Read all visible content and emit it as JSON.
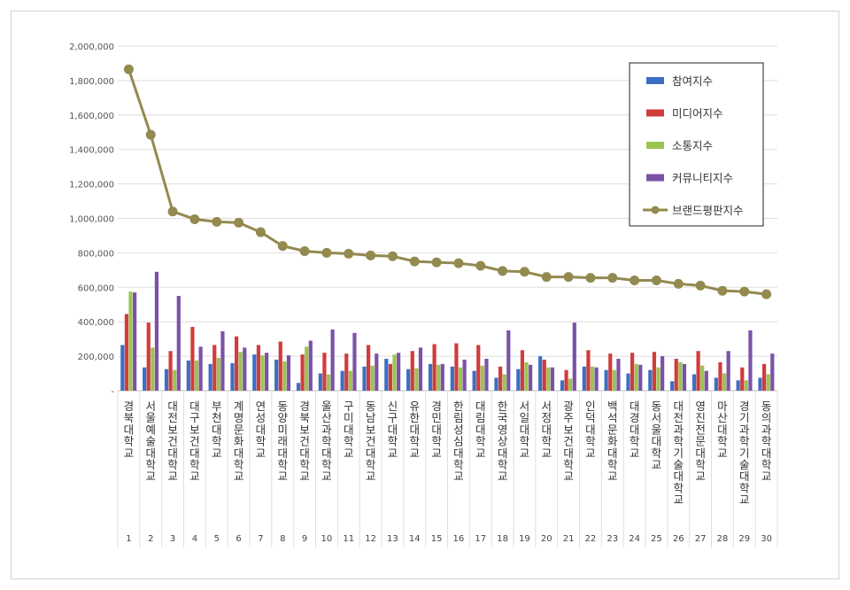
{
  "chart_data": {
    "type": "bar",
    "combo_line_series": "브랜드평판지수",
    "categories": [
      "경북대학교",
      "서울예술대학교",
      "대전보건대학교",
      "대구보건대학교",
      "부천대학교",
      "계명문화대학교",
      "연성대학교",
      "동양미래대학교",
      "경북보건대학교",
      "울산과학대학교",
      "구미대학교",
      "동남보건대학교",
      "신구대학교",
      "유한대학교",
      "경민대학교",
      "한림성심대학교",
      "대림대학교",
      "한국영상대학교",
      "서일대학교",
      "서정대학교",
      "광주보건대학교",
      "인덕대학교",
      "백석문화대학교",
      "대경대학교",
      "동서울대학교",
      "대전과학기술대학교",
      "영진전문대학교",
      "마산대학교",
      "경기과학기술대학교",
      "동의과학대학교"
    ],
    "ranks": [
      "1",
      "2",
      "3",
      "4",
      "5",
      "6",
      "7",
      "8",
      "9",
      "10",
      "11",
      "12",
      "13",
      "14",
      "15",
      "16",
      "17",
      "18",
      "19",
      "20",
      "21",
      "22",
      "23",
      "24",
      "25",
      "26",
      "27",
      "28",
      "29",
      "30"
    ],
    "ylim": [
      0,
      2000000
    ],
    "yticks": [
      0,
      200000,
      400000,
      600000,
      800000,
      1000000,
      1200000,
      1400000,
      1600000,
      1800000,
      2000000
    ],
    "ytick_labels": [
      "-",
      "200,000",
      "400,000",
      "600,000",
      "800,000",
      "1,000,000",
      "1,200,000",
      "1,400,000",
      "1,600,000",
      "1,800,000",
      "2,000,000"
    ],
    "grid": true,
    "legend_position": "top-right",
    "series": [
      {
        "name": "참여지수",
        "kind": "bar",
        "color": "#3b6fc4",
        "values": [
          265000,
          135000,
          125000,
          175000,
          155000,
          160000,
          210000,
          180000,
          45000,
          100000,
          115000,
          140000,
          185000,
          125000,
          155000,
          140000,
          115000,
          75000,
          125000,
          200000,
          60000,
          140000,
          120000,
          100000,
          120000,
          55000,
          95000,
          75000,
          60000,
          75000
        ]
      },
      {
        "name": "미디어지수",
        "kind": "bar",
        "color": "#d13c3c",
        "values": [
          445000,
          395000,
          230000,
          370000,
          265000,
          315000,
          265000,
          285000,
          210000,
          220000,
          215000,
          265000,
          155000,
          230000,
          270000,
          275000,
          265000,
          140000,
          235000,
          180000,
          120000,
          235000,
          215000,
          220000,
          225000,
          185000,
          230000,
          165000,
          135000,
          155000
        ]
      },
      {
        "name": "소통지수",
        "kind": "bar",
        "color": "#9bc450",
        "values": [
          575000,
          250000,
          120000,
          175000,
          190000,
          225000,
          205000,
          170000,
          255000,
          95000,
          115000,
          145000,
          210000,
          130000,
          150000,
          135000,
          145000,
          95000,
          165000,
          135000,
          70000,
          140000,
          120000,
          155000,
          135000,
          165000,
          145000,
          100000,
          60000,
          95000
        ]
      },
      {
        "name": "커뮤니티지수",
        "kind": "bar",
        "color": "#7b52a8",
        "values": [
          570000,
          690000,
          550000,
          255000,
          345000,
          250000,
          220000,
          205000,
          290000,
          355000,
          335000,
          215000,
          220000,
          250000,
          155000,
          180000,
          185000,
          350000,
          150000,
          135000,
          395000,
          135000,
          185000,
          150000,
          200000,
          155000,
          115000,
          230000,
          350000,
          215000
        ]
      },
      {
        "name": "브랜드평판지수",
        "kind": "line",
        "color": "#938a50",
        "values": [
          1865000,
          1485000,
          1040000,
          995000,
          980000,
          975000,
          920000,
          840000,
          810000,
          800000,
          795000,
          785000,
          780000,
          750000,
          745000,
          740000,
          725000,
          695000,
          690000,
          660000,
          660000,
          655000,
          655000,
          640000,
          640000,
          620000,
          610000,
          580000,
          575000,
          560000
        ]
      }
    ]
  }
}
